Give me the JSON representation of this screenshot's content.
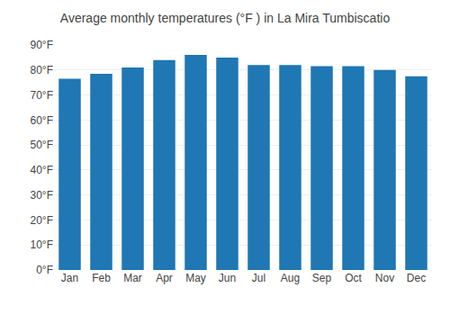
{
  "chart_data": {
    "type": "bar",
    "title": "Average monthly temperatures (°F ) in La Mira Tumbiscatio",
    "categories": [
      "Jan",
      "Feb",
      "Mar",
      "Apr",
      "May",
      "Jun",
      "Jul",
      "Aug",
      "Sep",
      "Oct",
      "Nov",
      "Dec"
    ],
    "values": [
      76.5,
      78.5,
      81.0,
      84.0,
      86.0,
      85.0,
      82.0,
      82.0,
      81.5,
      81.5,
      80.0,
      77.5
    ],
    "ylim": [
      0,
      90
    ],
    "yticks": [
      {
        "value": 0,
        "label": "0°F"
      },
      {
        "value": 10,
        "label": "10°F"
      },
      {
        "value": 20,
        "label": "20°F"
      },
      {
        "value": 30,
        "label": "30°F"
      },
      {
        "value": 40,
        "label": "40°F"
      },
      {
        "value": 50,
        "label": "50°F"
      },
      {
        "value": 60,
        "label": "60°F"
      },
      {
        "value": 70,
        "label": "70°F"
      },
      {
        "value": 80,
        "label": "80°F"
      },
      {
        "value": 90,
        "label": "90°F"
      }
    ],
    "grid": true
  }
}
